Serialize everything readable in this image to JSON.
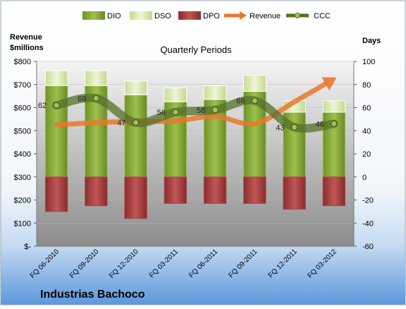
{
  "chart_data": {
    "type": "bar",
    "title": "Quarterly Periods",
    "company": "Industrias Bachoco",
    "left_axis": {
      "label_line1": "Revenue",
      "label_line2": "$millions",
      "range": [
        0,
        800
      ],
      "ticks": [
        "$-",
        "$100",
        "$200",
        "$300",
        "$400",
        "$500",
        "$600",
        "$700",
        "$800"
      ]
    },
    "right_axis": {
      "label": "Days",
      "range": [
        -60,
        100
      ],
      "ticks": [
        "-60",
        "-40",
        "-20",
        "0",
        "20",
        "40",
        "60",
        "80",
        "100"
      ]
    },
    "categories": [
      "FQ 06-2010",
      "FQ 09-2010",
      "FQ 12-2010",
      "FQ 03-2011",
      "FQ 06-2011",
      "FQ 09-2011",
      "FQ 12-2011",
      "FQ 03-2012"
    ],
    "legend": [
      "DIO",
      "DSO",
      "DPO",
      "Revenue",
      "CCC"
    ],
    "legend_position": "top",
    "series": [
      {
        "name": "DIO",
        "axis": "right",
        "values": [
          79,
          79,
          71,
          65,
          67,
          74,
          56,
          56
        ]
      },
      {
        "name": "DSO",
        "axis": "right",
        "values": [
          13,
          13,
          12,
          12,
          12,
          14,
          10,
          10
        ]
      },
      {
        "name": "DPO",
        "axis": "right",
        "values": [
          -30,
          -25,
          -36,
          -23,
          -23,
          -23,
          -28,
          -25
        ]
      },
      {
        "name": "Revenue",
        "axis": "left",
        "values": [
          525,
          535,
          540,
          542,
          562,
          530,
          625,
          724
        ]
      },
      {
        "name": "CCC",
        "axis": "right",
        "values": [
          62,
          68,
          47,
          56,
          58,
          66,
          43,
          46
        ],
        "labels": [
          "62",
          "68",
          "47",
          "56",
          "58",
          "66",
          "43",
          "46"
        ]
      }
    ],
    "colors": {
      "DIO": "#86a83a",
      "DSO": "#d9e8b1",
      "DPO": "#a63c3c",
      "Revenue": "#e9782c",
      "CCC": "#55702a",
      "background_top": "#f2f2f2",
      "background_bottom": "#8f8f8f",
      "bottom_band": "#5b98dc"
    }
  }
}
